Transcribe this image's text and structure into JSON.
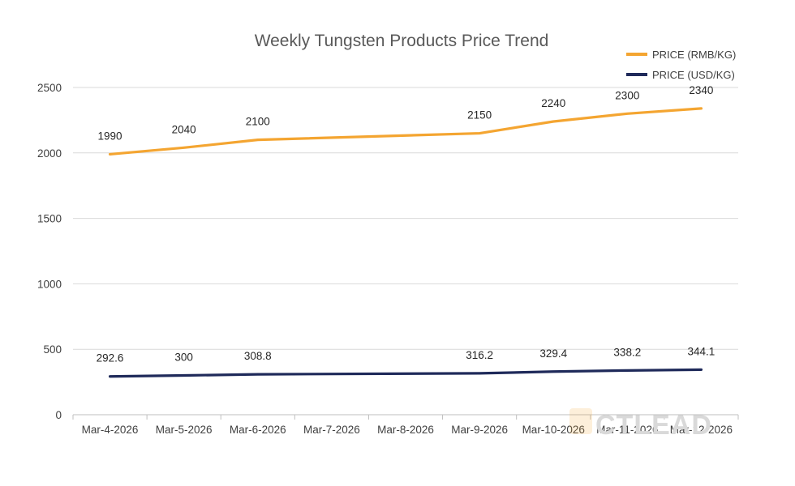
{
  "chart_data": {
    "type": "line",
    "title": "Weekly Tungsten Products Price Trend",
    "xlabel": "",
    "ylabel": "",
    "categories": [
      "Mar-4-2026",
      "Mar-5-2026",
      "Mar-6-2026",
      "Mar-7-2026",
      "Mar-8-2026",
      "Mar-9-2026",
      "Mar-10-2026",
      "Mar-11-2026",
      "Mar-12-2026"
    ],
    "ylim": [
      0,
      2500
    ],
    "yticks": [
      0,
      500,
      1000,
      1500,
      2000,
      2500
    ],
    "grid": true,
    "legend_position": "top-right",
    "series": [
      {
        "name": "PRICE (RMB/KG)",
        "color": "#F4A531",
        "values": [
          1990,
          2040,
          2100,
          null,
          null,
          2150,
          2240,
          2300,
          2340
        ],
        "labels": [
          "1990",
          "2040",
          "2100",
          null,
          null,
          "2150",
          "2240",
          "2300",
          "2340"
        ]
      },
      {
        "name": "PRICE (USD/KG)",
        "color": "#1F2A5A",
        "values": [
          292.6,
          300,
          308.8,
          null,
          null,
          316.2,
          329.4,
          338.2,
          344.1
        ],
        "labels": [
          "292.6",
          "300",
          "308.8",
          null,
          null,
          "316.2",
          "329.4",
          "338.2",
          "344.1"
        ]
      }
    ],
    "watermark": "CTLEAD",
    "watermark_color": "#F4A531"
  }
}
